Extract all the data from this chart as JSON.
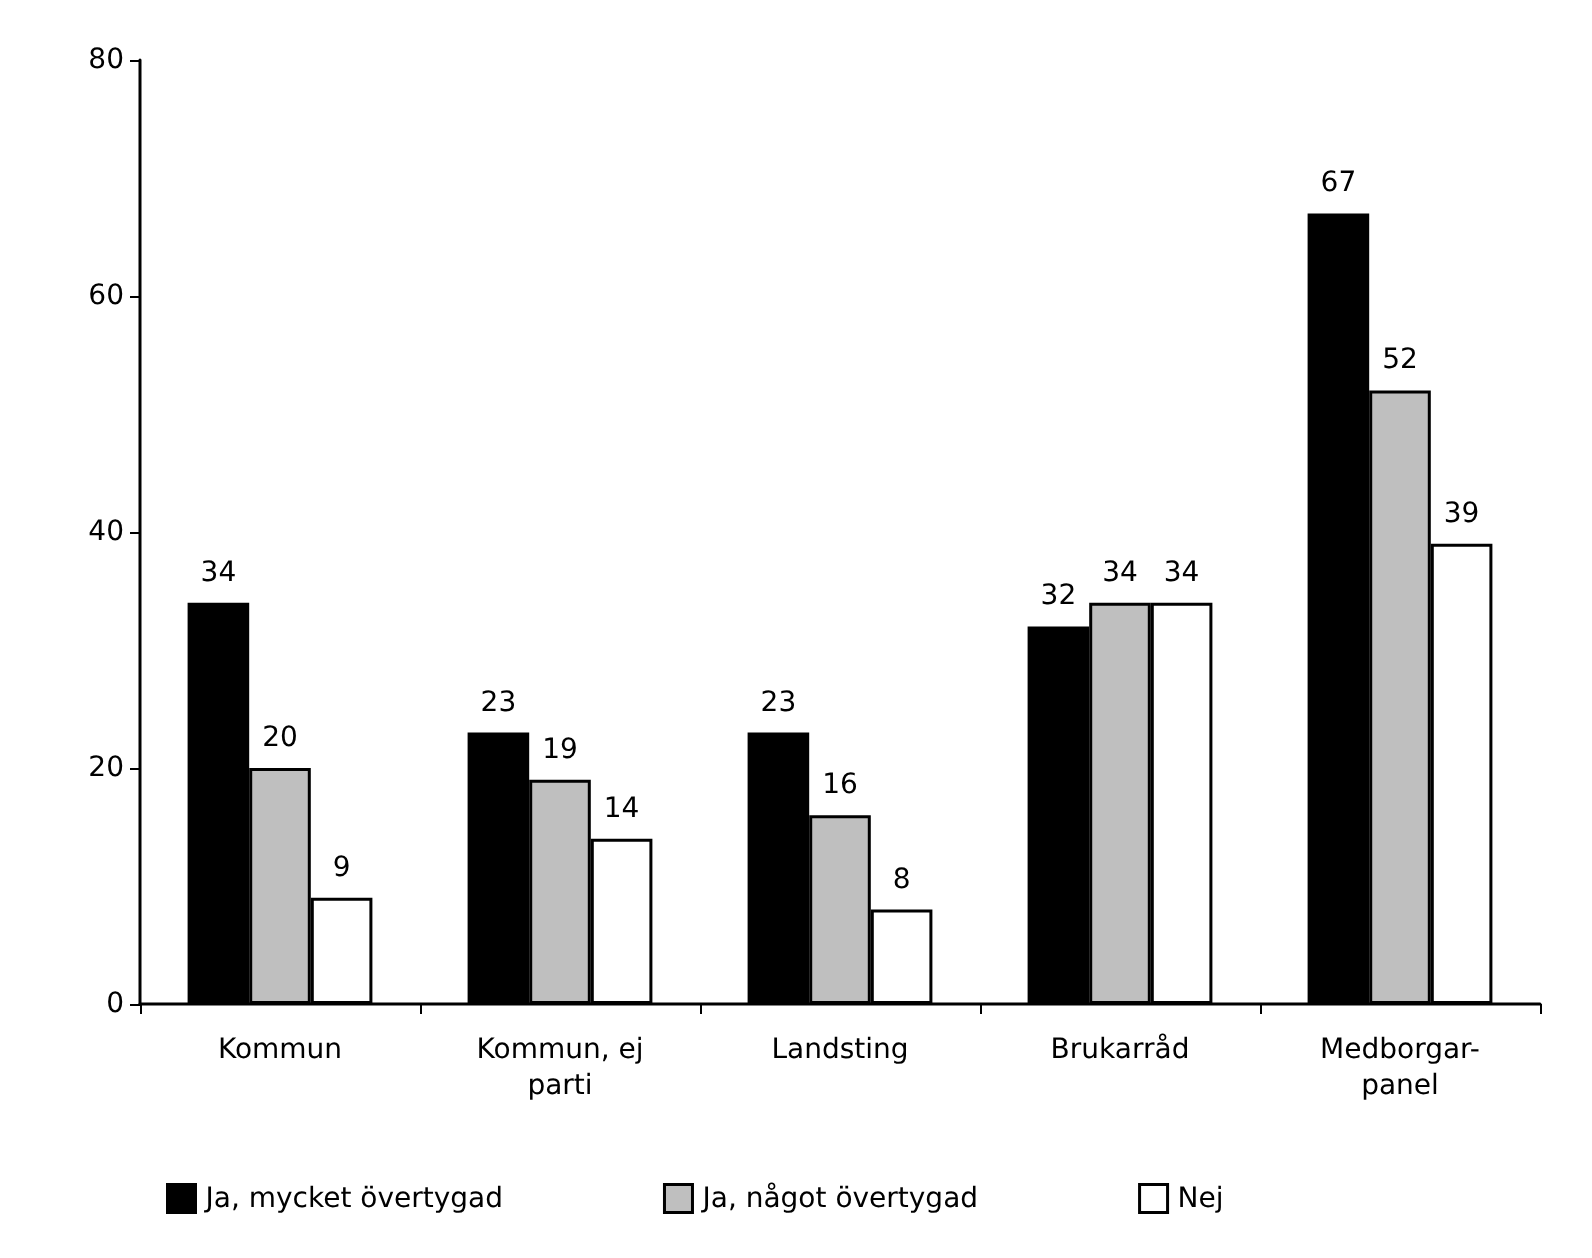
{
  "chart_data": {
    "type": "bar",
    "categories": [
      "Kommun",
      "Kommun, ej\nparti",
      "Landsting",
      "Brukarråd",
      "Medborgar-\npanel"
    ],
    "series": [
      {
        "name": "Ja, mycket övertygad",
        "color": "#000000",
        "values": [
          34,
          23,
          23,
          32,
          67
        ]
      },
      {
        "name": "Ja, något övertygad",
        "color": "#bfbfbf",
        "values": [
          20,
          19,
          16,
          34,
          52
        ]
      },
      {
        "name": "Nej",
        "color": "#ffffff",
        "values": [
          9,
          14,
          8,
          34,
          39
        ]
      }
    ],
    "ylim": [
      0,
      80
    ],
    "yticks": [
      0,
      20,
      40,
      60,
      80
    ],
    "grid": false,
    "legend": "bottom",
    "data_labels": true
  }
}
